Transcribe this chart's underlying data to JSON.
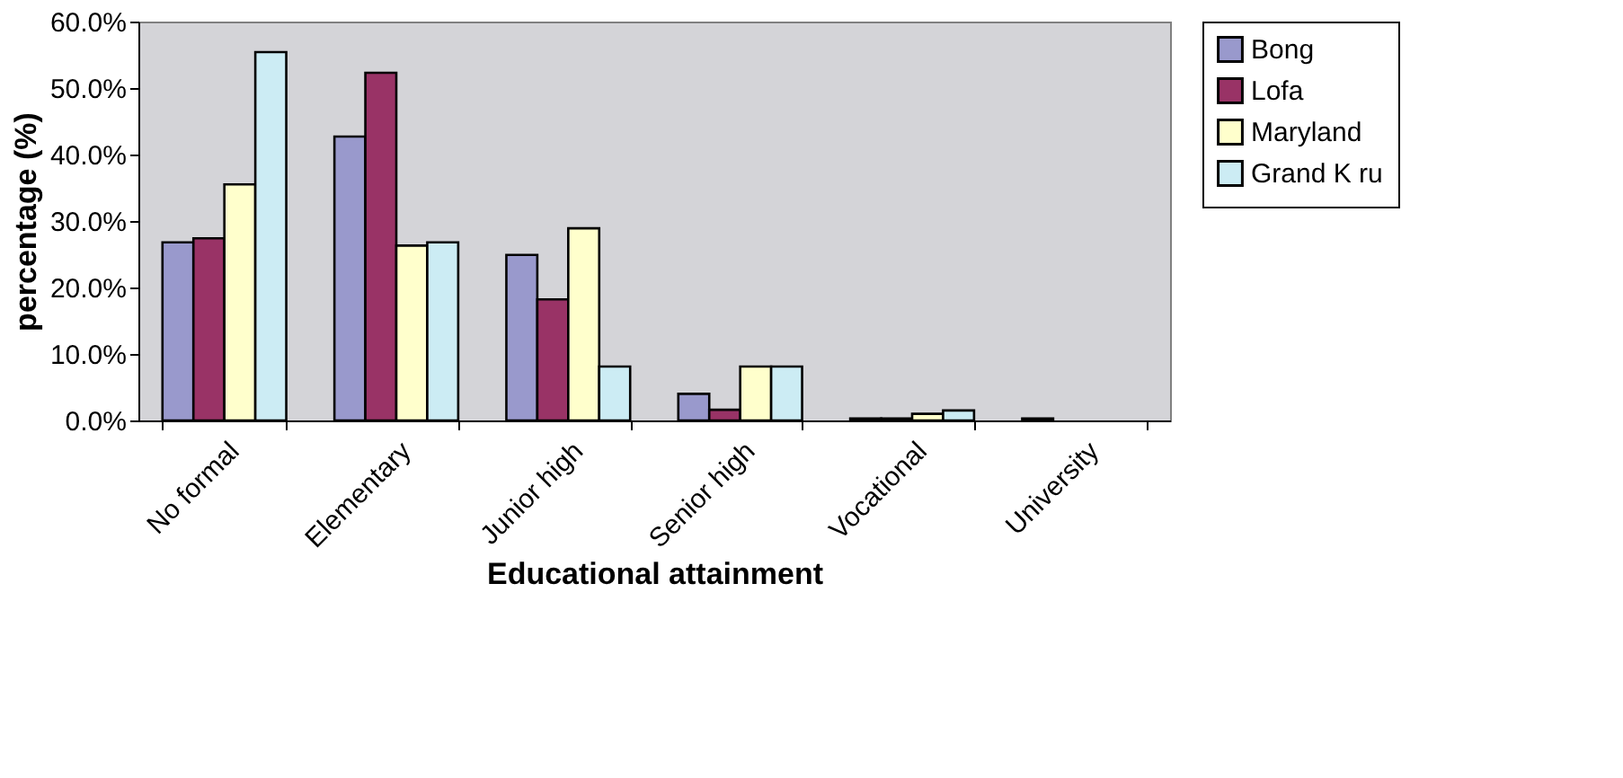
{
  "chart_data": {
    "type": "bar",
    "xlabel": "Educational attainment",
    "ylabel": "percentage (%)",
    "categories": [
      "No formal",
      "Elementary",
      "Junior high",
      "Senior high",
      "Vocational",
      "University"
    ],
    "series": [
      {
        "name": "Bong",
        "color": "#9999cc",
        "values": [
          26.8,
          42.7,
          24.9,
          4.0,
          0.3,
          0.3
        ]
      },
      {
        "name": "Lofa",
        "color": "#993366",
        "values": [
          27.4,
          52.3,
          18.2,
          1.6,
          0.3,
          null
        ]
      },
      {
        "name": "Maryland",
        "color": "#ffffcc",
        "values": [
          35.5,
          26.3,
          28.9,
          8.1,
          1.0,
          null
        ]
      },
      {
        "name": "Grand K ru",
        "color": "#ccecf4",
        "values": [
          55.4,
          26.8,
          8.1,
          8.1,
          1.5,
          null
        ]
      }
    ],
    "ylim": [
      0,
      60
    ],
    "yticks": [
      {
        "value": 0,
        "label": "0.0%"
      },
      {
        "value": 10,
        "label": "10.0%"
      },
      {
        "value": 20,
        "label": "20.0%"
      },
      {
        "value": 30,
        "label": "30.0%"
      },
      {
        "value": 40,
        "label": "40.0%"
      },
      {
        "value": 50,
        "label": "50.0%"
      },
      {
        "value": 60,
        "label": "60.0%"
      }
    ],
    "grid": false,
    "legend": "right"
  }
}
